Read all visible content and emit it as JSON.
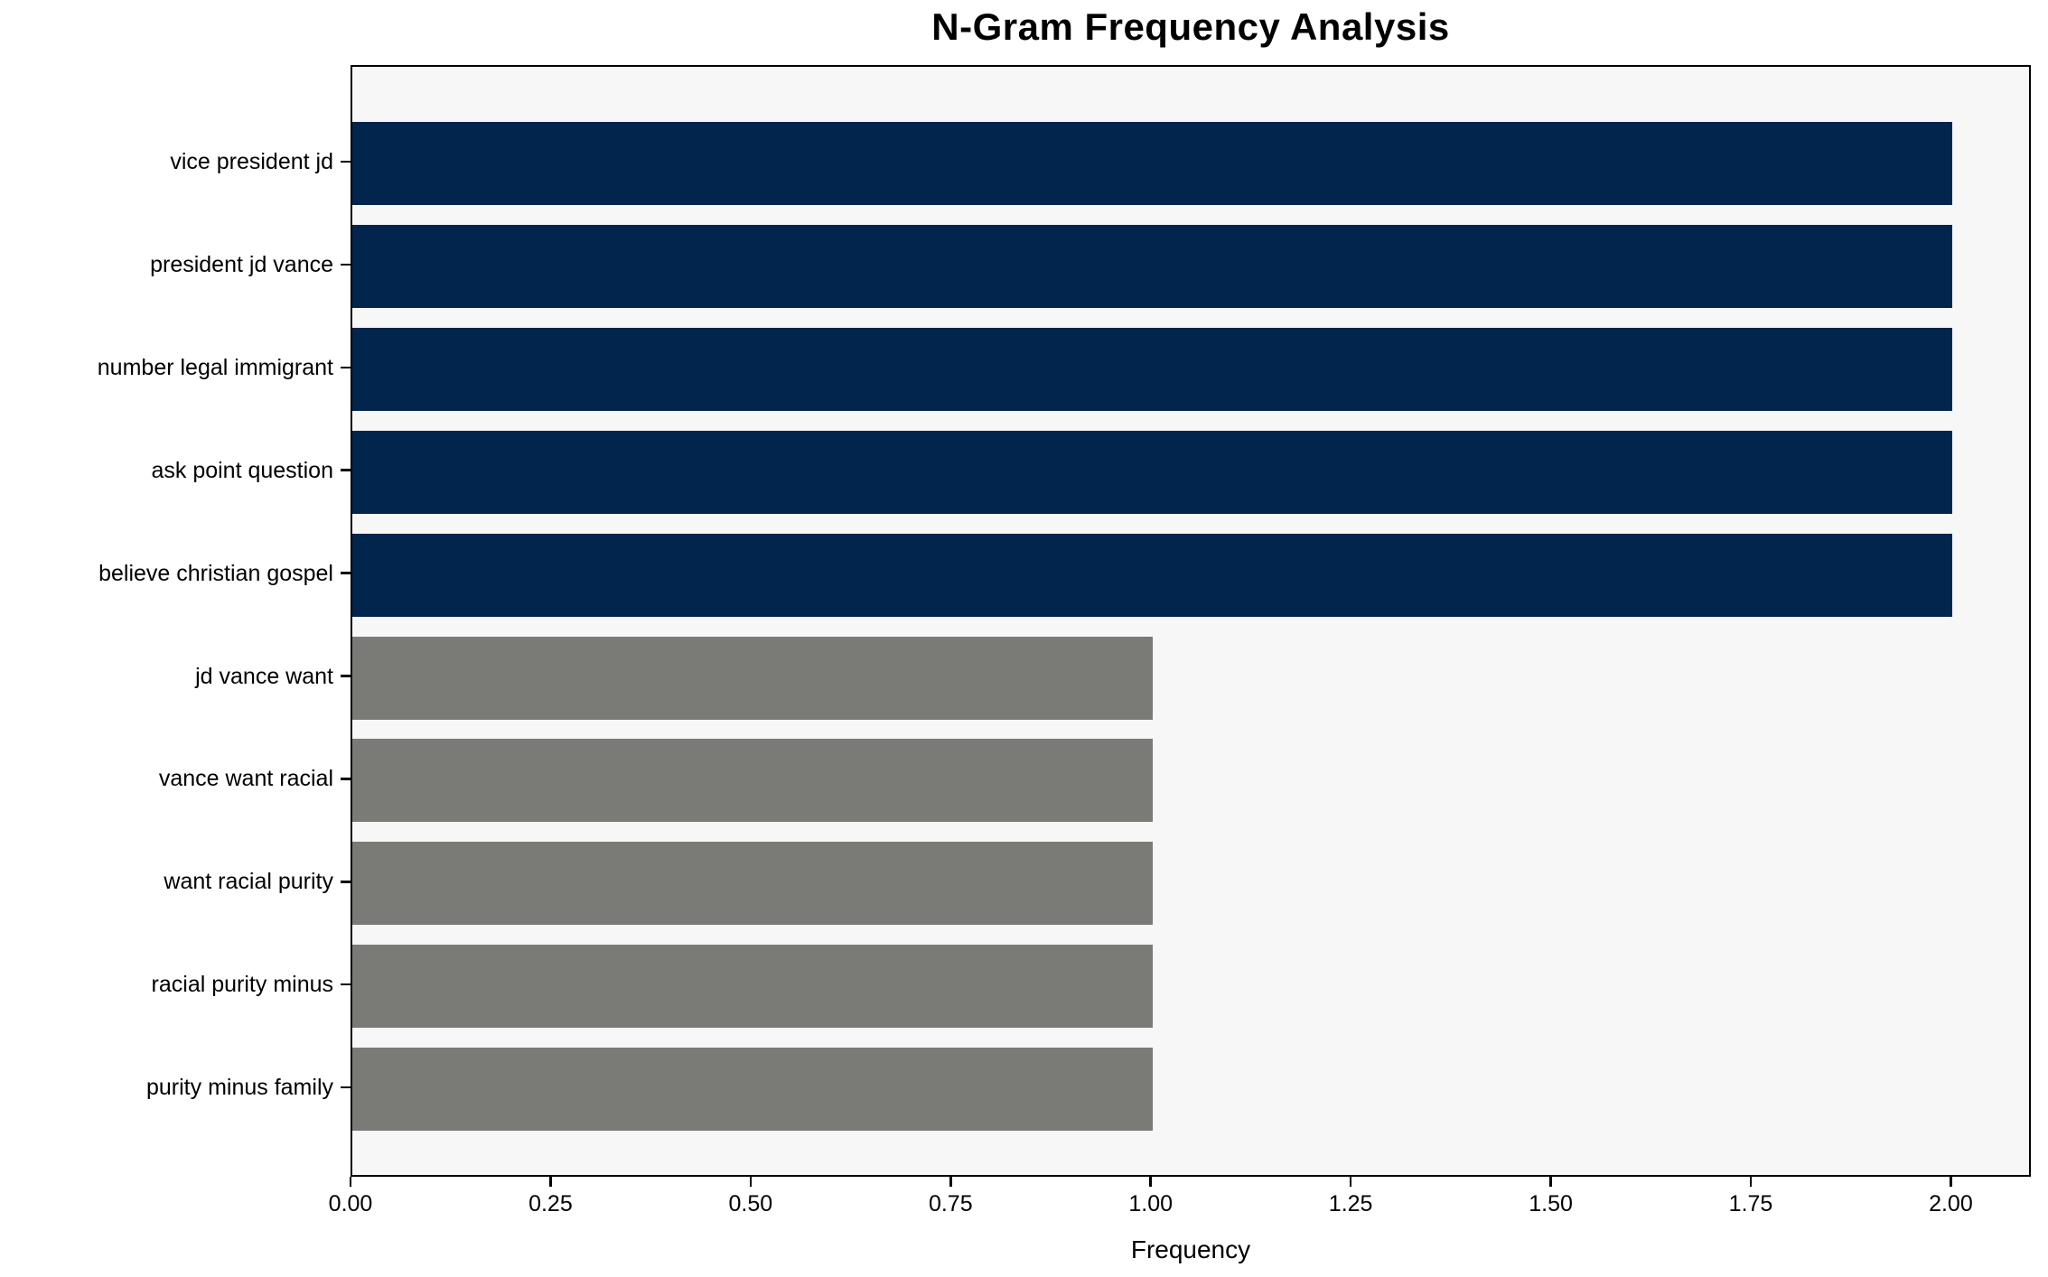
{
  "chart_data": {
    "type": "bar",
    "orientation": "horizontal",
    "title": "N-Gram Frequency Analysis",
    "xlabel": "Frequency",
    "ylabel": "",
    "categories": [
      "vice president jd",
      "president jd vance",
      "number legal immigrant",
      "ask point question",
      "believe christian gospel",
      "jd vance want",
      "vance want racial",
      "want racial purity",
      "racial purity minus",
      "purity minus family"
    ],
    "values": [
      2,
      2,
      2,
      2,
      2,
      1,
      1,
      1,
      1,
      1
    ],
    "bar_colors": [
      "#02254d",
      "#02254d",
      "#02254d",
      "#02254d",
      "#02254d",
      "#7a7a77",
      "#7a7a77",
      "#7a7a77",
      "#7a7a77",
      "#7a7a77"
    ],
    "xlim": [
      0,
      2.1
    ],
    "x_tick_values": [
      0.0,
      0.25,
      0.5,
      0.75,
      1.0,
      1.25,
      1.5,
      1.75,
      2.0
    ],
    "x_tick_labels": [
      "0.00",
      "0.25",
      "0.50",
      "0.75",
      "1.00",
      "1.25",
      "1.50",
      "1.75",
      "2.00"
    ],
    "grid": false,
    "legend": null,
    "colors": {
      "highlight_bar": "#02254d",
      "default_bar": "#7a7a77",
      "plot_background": "#f7f7f7",
      "figure_background": "#ffffff",
      "text": "#000000"
    }
  }
}
